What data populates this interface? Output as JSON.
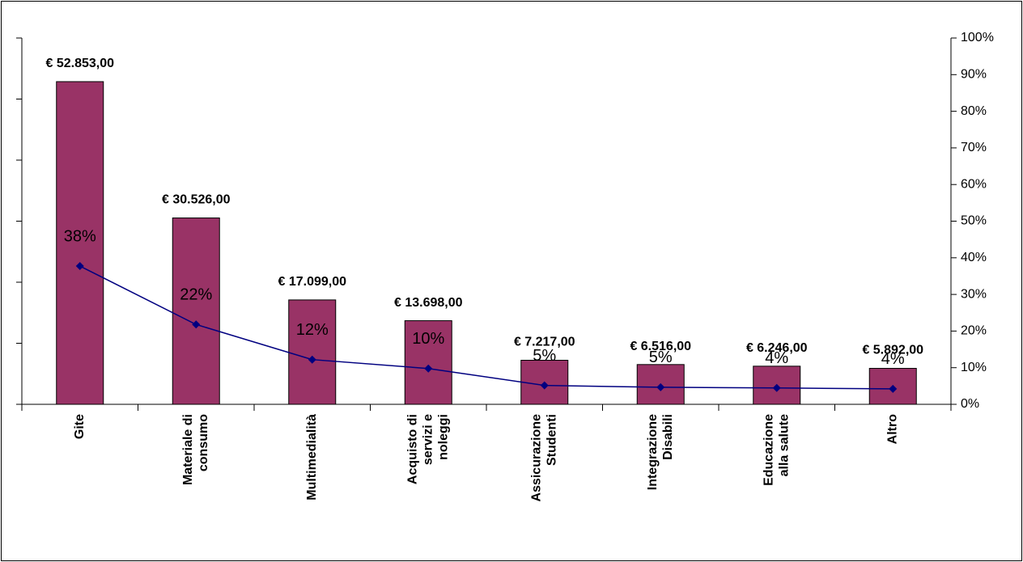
{
  "chart_data": {
    "type": "bar_line",
    "categories": [
      "Gite",
      "Materiale di consumo",
      "Multimedialità",
      "Acquisto di servizi e noleggi",
      "Assicurazione Studenti",
      "Integrazione Disabili",
      "Educazione alla salute",
      "Altro"
    ],
    "series": [
      {
        "type": "bar",
        "color": "#993366",
        "values": [
          52853,
          30526,
          17099,
          13698,
          7217,
          6516,
          6246,
          5892
        ],
        "value_labels": [
          "€ 52.853,00",
          "€ 30.526,00",
          "€ 17.099,00",
          "€ 13.698,00",
          "€ 7.217,00",
          "€ 6.516,00",
          "€ 6.246,00",
          "€ 5.892,00"
        ]
      },
      {
        "type": "line",
        "axis": "y2",
        "color": "#000080",
        "values": [
          37.74,
          21.8,
          12.21,
          9.78,
          5.15,
          4.65,
          4.46,
          4.21
        ],
        "value_labels": [
          "38%",
          "22%",
          "12%",
          "10%",
          "5%",
          "5%",
          "4%",
          "4%"
        ]
      }
    ],
    "ylim": [
      0,
      60000
    ],
    "yticks": [
      0,
      10000,
      20000,
      30000,
      40000,
      50000,
      60000
    ],
    "y2lim": [
      0,
      100
    ],
    "y2ticks": [
      {
        "value": 0,
        "label": "0%"
      },
      {
        "value": 10,
        "label": "10%"
      },
      {
        "value": 20,
        "label": "20%"
      },
      {
        "value": 30,
        "label": "30%"
      },
      {
        "value": 40,
        "label": "40%"
      },
      {
        "value": 50,
        "label": "50%"
      },
      {
        "value": 60,
        "label": "60%"
      },
      {
        "value": 70,
        "label": "70%"
      },
      {
        "value": 80,
        "label": "80%"
      },
      {
        "value": 90,
        "label": "90%"
      },
      {
        "value": 100,
        "label": "100%"
      }
    ]
  }
}
